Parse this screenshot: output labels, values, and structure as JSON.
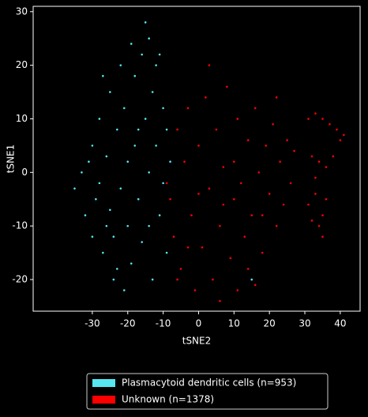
{
  "chart_data": {
    "type": "scatter",
    "xlabel": "tSNE2",
    "ylabel": "tSNE1",
    "xlim": [
      -46.7,
      45.6
    ],
    "ylim": [
      -25.9,
      31.0
    ],
    "xticks": [
      -30,
      -20,
      -10,
      0,
      10,
      20,
      30,
      40
    ],
    "yticks": [
      -20,
      -10,
      0,
      10,
      20,
      30
    ],
    "legend": "below",
    "series": [
      {
        "name": "Plasmacytoid dendritic cells (n=953)",
        "color": "#55e6f0",
        "x": [
          -35,
          -33,
          -32,
          -30,
          -30,
          -28,
          -28,
          -27,
          -26,
          -25,
          -25,
          -24,
          -23,
          -22,
          -22,
          -21,
          -20,
          -20,
          -19,
          -18,
          -18,
          -17,
          -16,
          -16,
          -15,
          -15,
          -14,
          -14,
          -13,
          -13,
          -12,
          -12,
          -11,
          -10,
          -10,
          -9,
          -8,
          -24,
          -29,
          -21,
          -19,
          -17,
          -26,
          -31,
          -23,
          -11,
          -9,
          -14,
          -27,
          15
        ],
        "values": [
          -3,
          0,
          -8,
          5,
          -12,
          10,
          -2,
          -15,
          3,
          15,
          -7,
          -20,
          8,
          -3,
          20,
          12,
          -10,
          2,
          -17,
          18,
          5,
          -5,
          22,
          -13,
          10,
          28,
          25,
          0,
          15,
          -20,
          20,
          5,
          -8,
          12,
          -2,
          -15,
          2,
          -12,
          -5,
          -22,
          24,
          8,
          -10,
          2,
          -18,
          22,
          8,
          -10,
          18,
          -20
        ]
      },
      {
        "name": "Unknown (n=1378)",
        "color": "#ff0000",
        "x": [
          -8,
          -7,
          -6,
          -5,
          -4,
          -3,
          -2,
          -1,
          0,
          1,
          2,
          3,
          4,
          5,
          6,
          7,
          8,
          9,
          10,
          11,
          12,
          13,
          14,
          15,
          16,
          17,
          18,
          19,
          20,
          21,
          22,
          23,
          24,
          25,
          26,
          27,
          -9,
          -6,
          0,
          3,
          6,
          10,
          14,
          18,
          22,
          31,
          33,
          35,
          37,
          39,
          40,
          41,
          32,
          34,
          36,
          38,
          33,
          31,
          33,
          35,
          34,
          36,
          35,
          32,
          11,
          -3,
          7,
          16
        ],
        "values": [
          -5,
          -12,
          8,
          -18,
          2,
          12,
          -8,
          -22,
          5,
          -14,
          14,
          -3,
          -20,
          8,
          -10,
          1,
          16,
          -16,
          -5,
          10,
          -2,
          -12,
          6,
          -8,
          12,
          0,
          -15,
          5,
          -4,
          9,
          -10,
          2,
          -6,
          6,
          -2,
          4,
          -2,
          -20,
          -4,
          20,
          -24,
          2,
          -18,
          -8,
          14,
          10,
          11,
          10,
          9,
          8,
          6,
          7,
          3,
          2,
          1,
          3,
          -1,
          -6,
          -4,
          -8,
          -10,
          -5,
          -12,
          -9,
          -22,
          -14,
          -6,
          -21
        ]
      }
    ]
  }
}
